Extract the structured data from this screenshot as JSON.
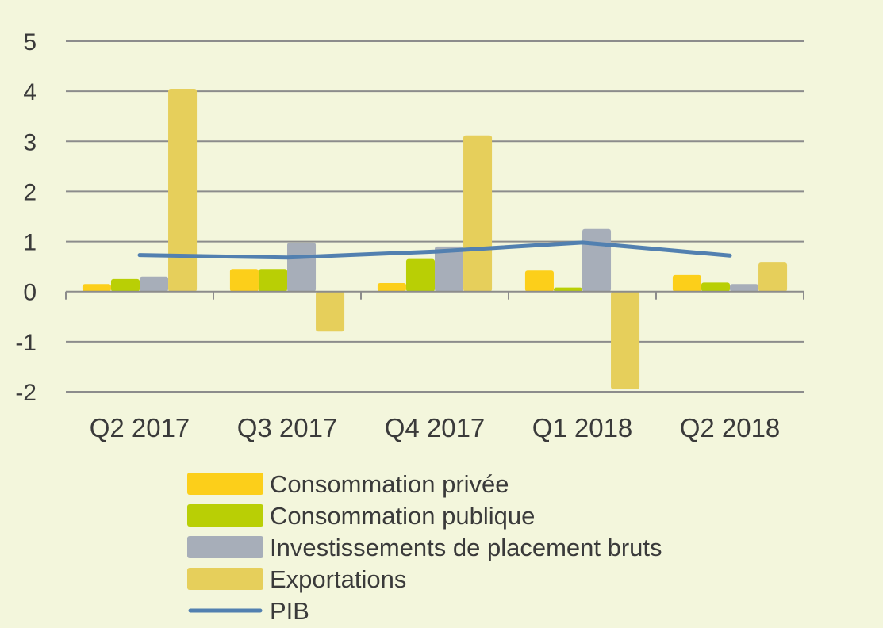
{
  "chart_data": {
    "type": "bar",
    "categories": [
      "Q2 2017",
      "Q3 2017",
      "Q4 2017",
      "Q1 2018",
      "Q2 2018"
    ],
    "series": [
      {
        "name": "Consommation privée",
        "type": "bar",
        "color": "#fccf1a",
        "values": [
          0.15,
          0.45,
          0.17,
          0.42,
          0.33
        ]
      },
      {
        "name": "Consommation publique",
        "type": "bar",
        "color": "#b9cf05",
        "values": [
          0.25,
          0.45,
          0.65,
          0.08,
          0.18
        ]
      },
      {
        "name": "Investissements de placement bruts",
        "type": "bar",
        "color": "#a7aeb9",
        "values": [
          0.3,
          0.98,
          0.9,
          1.25,
          0.15
        ]
      },
      {
        "name": "Exportations",
        "type": "bar",
        "color": "#e6cf5b",
        "values": [
          4.05,
          -0.8,
          3.12,
          -1.95,
          0.58
        ]
      },
      {
        "name": "PIB",
        "type": "line",
        "color": "#5280b0",
        "values": [
          0.73,
          0.68,
          0.8,
          0.98,
          0.72
        ]
      }
    ],
    "ylim": [
      -2,
      5
    ],
    "yticks": [
      5,
      4,
      3,
      2,
      1,
      0,
      -1,
      -2
    ],
    "title": "",
    "xlabel": "",
    "ylabel": "",
    "grid": true,
    "legend_position": "bottom"
  }
}
